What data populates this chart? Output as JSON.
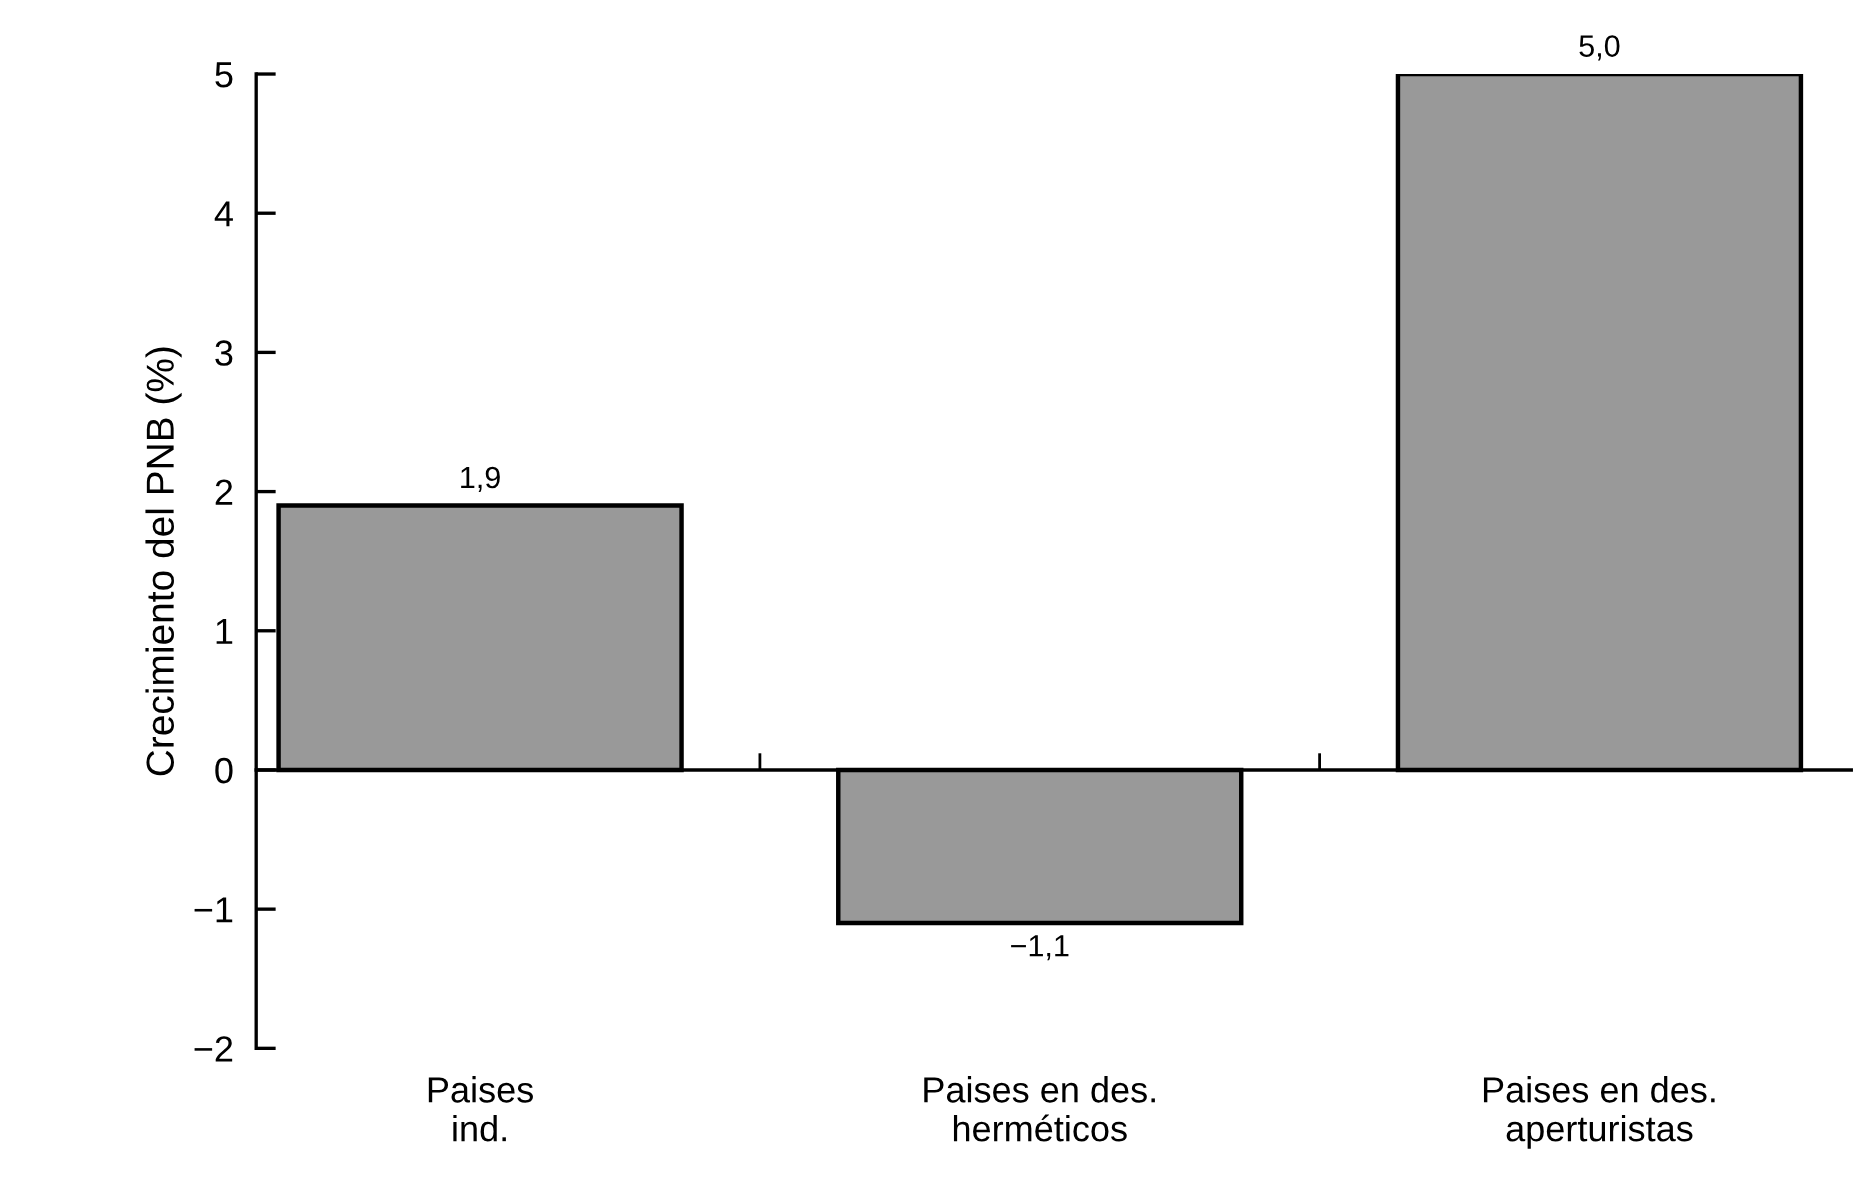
{
  "chart_data": {
    "type": "bar",
    "ylabel": "Crecimiento del PNB (%)",
    "categories": [
      "Paises\nind.",
      "Paises en des.\nherméticos",
      "Paises en des.\naperturistas"
    ],
    "values": [
      1.9,
      -1.1,
      5.0
    ],
    "value_labels": [
      "1,9",
      "−1,1",
      "5,0"
    ],
    "color": "#999999",
    "ylim": [
      -2,
      5
    ],
    "yticks": [
      {
        "value": -2,
        "label": "−2"
      },
      {
        "value": -1,
        "label": "−1"
      },
      0,
      1,
      2,
      3,
      4,
      5
    ],
    "legend": false
  }
}
